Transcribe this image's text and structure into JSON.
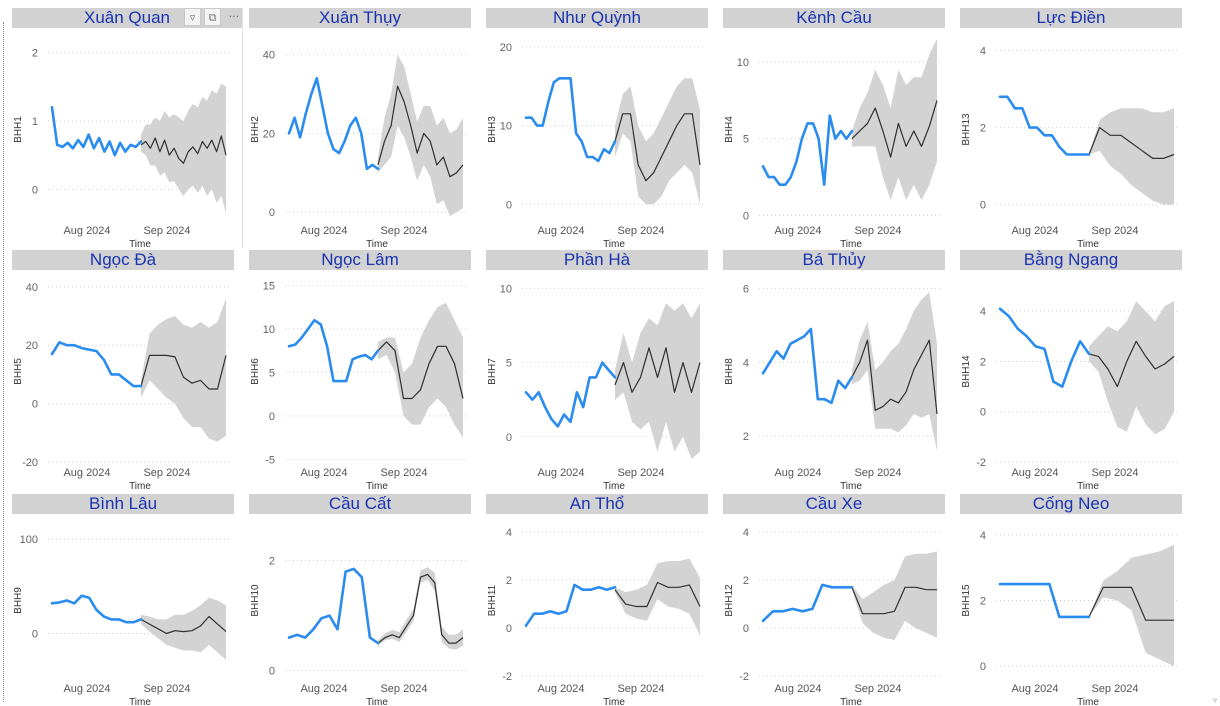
{
  "visual_header": {
    "filter_icon": "filter-icon",
    "focus_icon": "focus-mode-icon",
    "more_label": "···"
  },
  "colors": {
    "observed": "#2a8cef",
    "forecast": "#2f2f2f",
    "band": "#d3d3d3",
    "title": "#1a33b2",
    "header_bg": "#d2d2d2"
  },
  "chart_data": [
    {
      "type": "line",
      "title": "Xuân Quan",
      "ylabel": "BHH1",
      "xlabel": "Time",
      "x_ticks": [
        "Aug 2024",
        "Sep 2024"
      ],
      "y_ticks": [
        0,
        1,
        2
      ],
      "ylim": [
        -0.45,
        2.2
      ],
      "observed": [
        1.2,
        0.65,
        0.62,
        0.68,
        0.6,
        0.72,
        0.62,
        0.8,
        0.6,
        0.75,
        0.55,
        0.7,
        0.5,
        0.68,
        0.55,
        0.65,
        0.62,
        0.7
      ],
      "forecast": [
        0.65,
        0.7,
        0.6,
        0.75,
        0.55,
        0.72,
        0.5,
        0.6,
        0.45,
        0.38,
        0.55,
        0.62,
        0.52,
        0.7,
        0.6,
        0.72,
        0.55,
        0.78,
        0.5
      ],
      "band_lower": [
        0.55,
        0.5,
        0.35,
        0.35,
        0.2,
        0.25,
        0.1,
        0.12,
        0.0,
        -0.1,
        0.0,
        0.05,
        -0.05,
        0.05,
        -0.1,
        0.0,
        -0.2,
        -0.1,
        -0.35
      ],
      "band_upper": [
        0.8,
        0.95,
        0.95,
        1.05,
        1.0,
        1.15,
        1.05,
        1.1,
        1.05,
        1.0,
        1.15,
        1.25,
        1.2,
        1.35,
        1.3,
        1.45,
        1.4,
        1.55,
        1.5
      ]
    },
    {
      "type": "line",
      "title": "Xuân Thụy",
      "ylabel": "BHH2",
      "xlabel": "Time",
      "x_ticks": [
        "Aug 2024",
        "Sep 2024"
      ],
      "y_ticks": [
        0,
        20,
        40
      ],
      "ylim": [
        -2,
        44
      ],
      "observed": [
        20,
        24,
        19,
        25,
        30,
        34,
        27,
        20,
        16,
        15,
        18,
        22,
        24,
        20,
        11,
        12,
        11
      ],
      "forecast": [
        12,
        18,
        22,
        32,
        28,
        22,
        15,
        20,
        18,
        12,
        14,
        9,
        10,
        12
      ],
      "band_lower": [
        10,
        12,
        14,
        22,
        19,
        14,
        8,
        12,
        9,
        2,
        3,
        -1,
        0,
        1
      ],
      "band_upper": [
        14,
        24,
        30,
        40,
        37,
        30,
        23,
        27,
        27,
        22,
        24,
        20,
        21,
        24
      ]
    },
    {
      "type": "line",
      "title": "Như Quỳnh",
      "ylabel": "BHH3",
      "xlabel": "Time",
      "x_ticks": [
        "Aug 2024",
        "Sep 2024"
      ],
      "y_ticks": [
        0,
        10,
        20
      ],
      "ylim": [
        -2,
        21
      ],
      "observed": [
        11,
        11,
        10,
        10,
        13,
        15.5,
        16,
        16,
        16,
        9,
        8,
        6,
        6,
        5.5,
        7,
        6.5,
        8
      ],
      "forecast": [
        8,
        11.5,
        11.5,
        5,
        3,
        4,
        6,
        8,
        10,
        11.5,
        11.5,
        5
      ],
      "band_lower": [
        6,
        9,
        8,
        1,
        0,
        0,
        1,
        3,
        4,
        5,
        4,
        0
      ],
      "band_upper": [
        10,
        14,
        15,
        10,
        8,
        9,
        11,
        13,
        15,
        16,
        16,
        12
      ]
    },
    {
      "type": "line",
      "title": "Kênh Cầu",
      "ylabel": "BHH4",
      "xlabel": "Time",
      "x_ticks": [
        "Aug 2024",
        "Sep 2024"
      ],
      "y_ticks": [
        0,
        5,
        10
      ],
      "ylim": [
        -0.3,
        11.5
      ],
      "observed": [
        3.2,
        2.5,
        2.5,
        2.0,
        2.0,
        2.5,
        3.5,
        5.0,
        6.0,
        6.0,
        5.0,
        2.0,
        6.5,
        5.0,
        5.5,
        5.0,
        5.5
      ],
      "forecast": [
        5.0,
        5.5,
        6.0,
        7.0,
        5.5,
        3.8,
        6.0,
        4.5,
        5.5,
        4.5,
        5.8,
        7.5
      ],
      "band_lower": [
        4.5,
        4.5,
        4.5,
        4.5,
        2.5,
        1.0,
        2.5,
        1.0,
        2.0,
        1.0,
        2.0,
        3.5
      ],
      "band_upper": [
        5.5,
        7.0,
        8.0,
        9.5,
        8.5,
        7.0,
        9.5,
        8.5,
        9.0,
        9.0,
        10.5,
        11.5
      ]
    },
    {
      "type": "line",
      "title": "Lực Điền",
      "ylabel": "BHH13",
      "xlabel": "Time",
      "x_ticks": [
        "Aug 2024",
        "Sep 2024"
      ],
      "y_ticks": [
        0,
        2,
        4
      ],
      "ylim": [
        -0.4,
        4.3
      ],
      "observed": [
        2.8,
        2.8,
        2.5,
        2.5,
        2.0,
        2.0,
        1.8,
        1.8,
        1.5,
        1.3,
        1.3,
        1.3,
        1.3
      ],
      "forecast": [
        1.3,
        2.0,
        1.8,
        1.8,
        1.6,
        1.4,
        1.2,
        1.2,
        1.3
      ],
      "band_lower": [
        1.3,
        1.4,
        1.0,
        0.8,
        0.5,
        0.3,
        0.1,
        0.0,
        0.0
      ],
      "band_upper": [
        1.3,
        2.2,
        2.4,
        2.5,
        2.5,
        2.5,
        2.4,
        2.4,
        2.5
      ]
    },
    {
      "type": "line",
      "title": "Ngọc Đà",
      "ylabel": "BHH5",
      "xlabel": "Time",
      "x_ticks": [
        "Aug 2024",
        "Sep 2024"
      ],
      "y_ticks": [
        -20,
        0,
        20,
        40
      ],
      "ylim": [
        -20,
        42
      ],
      "observed": [
        17,
        21,
        20,
        20,
        19,
        18.5,
        18,
        15,
        10,
        10,
        8,
        6,
        6
      ],
      "forecast": [
        6,
        16.5,
        16.5,
        16.5,
        16,
        9,
        7,
        8,
        5,
        5,
        16.5
      ],
      "band_lower": [
        2,
        8,
        5,
        2,
        0,
        -5,
        -8,
        -8,
        -12,
        -13,
        -11
      ],
      "band_upper": [
        8,
        24,
        27,
        29,
        30,
        27,
        26,
        28,
        26,
        28,
        36
      ]
    },
    {
      "type": "line",
      "title": "Ngọc Lâm",
      "ylabel": "BHH6",
      "xlabel": "Time",
      "x_ticks": [
        "Aug 2024",
        "Sep 2024"
      ],
      "y_ticks": [
        -5,
        0,
        5,
        10,
        15
      ],
      "ylim": [
        -5.3,
        15.5
      ],
      "observed": [
        8,
        8.2,
        9,
        10,
        11,
        10.5,
        8,
        4,
        4,
        4,
        6.5,
        6.8,
        7,
        6.5,
        7.5
      ],
      "forecast": [
        7.5,
        8.5,
        7.5,
        2,
        2,
        3,
        6,
        8,
        8,
        6,
        2
      ],
      "band_lower": [
        6.5,
        7,
        5,
        0,
        -1,
        -1,
        1,
        2,
        1,
        -1,
        -2.5
      ],
      "band_upper": [
        8.5,
        9,
        9,
        5,
        6,
        9,
        11,
        12.5,
        13,
        11,
        9
      ]
    },
    {
      "type": "line",
      "title": "Phần Hà",
      "ylabel": "BHH7",
      "xlabel": "Time",
      "x_ticks": [
        "Aug 2024",
        "Sep 2024"
      ],
      "y_ticks": [
        0,
        5,
        10
      ],
      "ylim": [
        -1.7,
        10.5
      ],
      "observed": [
        3,
        2.5,
        3,
        2,
        1.2,
        0.7,
        1.5,
        1,
        3,
        2,
        4,
        4,
        5,
        4.5,
        4
      ],
      "forecast": [
        3.5,
        5,
        3,
        4,
        6,
        4,
        6,
        3,
        5,
        3,
        5
      ],
      "band_lower": [
        2.5,
        3,
        1,
        0.5,
        1,
        -1,
        1,
        -1,
        0,
        -1.5,
        -1
      ],
      "band_upper": [
        4.5,
        7,
        5,
        7,
        8,
        7.5,
        9,
        8.5,
        9,
        8,
        9
      ]
    },
    {
      "type": "line",
      "title": "Bá Thủy",
      "ylabel": "BHH8",
      "xlabel": "Time",
      "x_ticks": [
        "Aug 2024",
        "Sep 2024"
      ],
      "y_ticks": [
        2,
        4,
        6
      ],
      "ylim": [
        1.3,
        6.2
      ],
      "observed": [
        3.7,
        4.0,
        4.3,
        4.1,
        4.5,
        4.6,
        4.7,
        4.9,
        3.0,
        3.0,
        2.9,
        3.5,
        3.3,
        3.6
      ],
      "forecast": [
        3.6,
        4.0,
        4.6,
        2.7,
        2.8,
        3.0,
        2.9,
        3.2,
        3.8,
        4.2,
        4.6,
        2.6
      ],
      "band_lower": [
        3.4,
        3.5,
        3.8,
        2.2,
        2.2,
        2.2,
        2.1,
        2.3,
        2.6,
        2.5,
        2.6,
        1.6
      ],
      "band_upper": [
        3.8,
        4.6,
        5.1,
        3.8,
        4.0,
        4.3,
        4.5,
        4.9,
        5.4,
        5.7,
        5.9,
        4.5
      ]
    },
    {
      "type": "line",
      "title": "Bằng Ngang",
      "ylabel": "BHH14",
      "xlabel": "Time",
      "x_ticks": [
        "Aug 2024",
        "Sep 2024"
      ],
      "y_ticks": [
        -2,
        0,
        2,
        4
      ],
      "ylim": [
        -2,
        5.2
      ],
      "observed": [
        4.1,
        3.8,
        3.3,
        3.0,
        2.6,
        2.5,
        1.2,
        1.0,
        2.0,
        2.8,
        2.3
      ],
      "forecast": [
        2.3,
        2.2,
        1.7,
        1.0,
        2.0,
        2.8,
        2.2,
        1.7,
        1.9,
        2.2
      ],
      "band_lower": [
        2.0,
        1.6,
        0.4,
        -0.6,
        -0.8,
        0.2,
        -0.5,
        -0.9,
        -0.7,
        0.0
      ],
      "band_upper": [
        2.6,
        3.0,
        3.4,
        3.2,
        3.6,
        4.4,
        4.0,
        3.6,
        4.2,
        4.4
      ]
    },
    {
      "type": "line",
      "title": "Bình Lâu",
      "ylabel": "BHH9",
      "xlabel": "Time",
      "x_ticks": [
        "Aug 2024",
        "Sep 2024"
      ],
      "y_ticks": [
        0,
        100
      ],
      "ylim": [
        -45,
        115
      ],
      "observed": [
        32,
        33,
        35,
        32,
        40,
        38,
        25,
        18,
        15,
        15,
        12,
        12,
        15
      ],
      "forecast": [
        15,
        10,
        5,
        0,
        3,
        2,
        3,
        8,
        18,
        10,
        2
      ],
      "band_lower": [
        10,
        2,
        -5,
        -12,
        -15,
        -18,
        -18,
        -20,
        -12,
        -20,
        -28
      ],
      "band_upper": [
        20,
        18,
        15,
        15,
        20,
        20,
        24,
        30,
        38,
        35,
        30
      ]
    },
    {
      "type": "line",
      "title": "Cầu Cất",
      "ylabel": "BHH10",
      "xlabel": "Time",
      "x_ticks": [
        "Aug 2024",
        "Sep 2024"
      ],
      "y_ticks": [
        0,
        2
      ],
      "ylim": [
        -0.1,
        2.65
      ],
      "observed": [
        0.6,
        0.65,
        0.6,
        0.75,
        0.95,
        1.0,
        0.75,
        1.8,
        1.85,
        1.7,
        0.6,
        0.5
      ],
      "forecast": [
        0.5,
        0.6,
        0.65,
        0.6,
        0.8,
        1.0,
        1.7,
        1.75,
        1.6,
        0.65,
        0.5,
        0.5,
        0.6
      ],
      "band_lower": [
        0.45,
        0.55,
        0.58,
        0.52,
        0.7,
        0.9,
        1.6,
        1.65,
        1.45,
        0.52,
        0.4,
        0.38,
        0.45
      ],
      "band_upper": [
        0.55,
        0.68,
        0.74,
        0.7,
        0.92,
        1.12,
        1.82,
        1.88,
        1.78,
        0.8,
        0.65,
        0.65,
        0.75
      ]
    },
    {
      "type": "line",
      "title": "An Thổ",
      "ylabel": "BHH11",
      "xlabel": "Time",
      "x_ticks": [
        "Aug 2024",
        "Sep 2024"
      ],
      "y_ticks": [
        -2,
        0,
        2,
        4
      ],
      "ylim": [
        -2,
        4.3
      ],
      "observed": [
        0.1,
        0.6,
        0.6,
        0.7,
        0.6,
        0.7,
        1.8,
        1.6,
        1.6,
        1.7,
        1.6,
        1.7
      ],
      "forecast": [
        1.6,
        1.0,
        0.9,
        0.9,
        1.9,
        1.7,
        1.7,
        1.8,
        0.9
      ],
      "band_lower": [
        1.5,
        0.6,
        0.4,
        0.3,
        1.2,
        0.9,
        0.8,
        0.6,
        -0.3
      ],
      "band_upper": [
        1.7,
        1.5,
        1.6,
        1.8,
        2.7,
        2.8,
        2.8,
        2.9,
        2.1
      ]
    },
    {
      "type": "line",
      "title": "Cầu Xe",
      "ylabel": "BHH12",
      "xlabel": "Time",
      "x_ticks": [
        "Aug 2024",
        "Sep 2024"
      ],
      "y_ticks": [
        -2,
        0,
        2,
        4
      ],
      "ylim": [
        -2,
        4.3
      ],
      "observed": [
        0.3,
        0.7,
        0.7,
        0.8,
        0.7,
        0.8,
        1.8,
        1.7,
        1.7,
        1.7
      ],
      "forecast": [
        1.7,
        0.6,
        0.6,
        0.6,
        0.7,
        1.7,
        1.7,
        1.6,
        1.6
      ],
      "band_lower": [
        1.6,
        0.2,
        -0.2,
        -0.4,
        -0.5,
        0.3,
        0.0,
        -0.2,
        -0.4
      ],
      "band_upper": [
        1.8,
        1.2,
        1.5,
        1.8,
        2.0,
        3.0,
        3.1,
        3.1,
        3.2
      ]
    },
    {
      "type": "line",
      "title": "Cống Neo",
      "ylabel": "BHH15",
      "xlabel": "Time",
      "x_ticks": [
        "Aug 2024",
        "Sep 2024"
      ],
      "y_ticks": [
        0,
        2,
        4
      ],
      "ylim": [
        -0.3,
        4.3
      ],
      "observed": [
        2.5,
        2.5,
        2.5,
        2.5,
        2.5,
        2.5,
        1.5,
        1.5,
        1.5,
        1.5
      ],
      "forecast": [
        1.5,
        2.4,
        2.4,
        2.4,
        1.4,
        1.4,
        1.4
      ],
      "band_lower": [
        1.5,
        2.1,
        2.0,
        1.7,
        0.4,
        0.2,
        0.0
      ],
      "band_upper": [
        1.5,
        2.6,
        2.9,
        3.3,
        3.4,
        3.5,
        3.7
      ]
    }
  ]
}
